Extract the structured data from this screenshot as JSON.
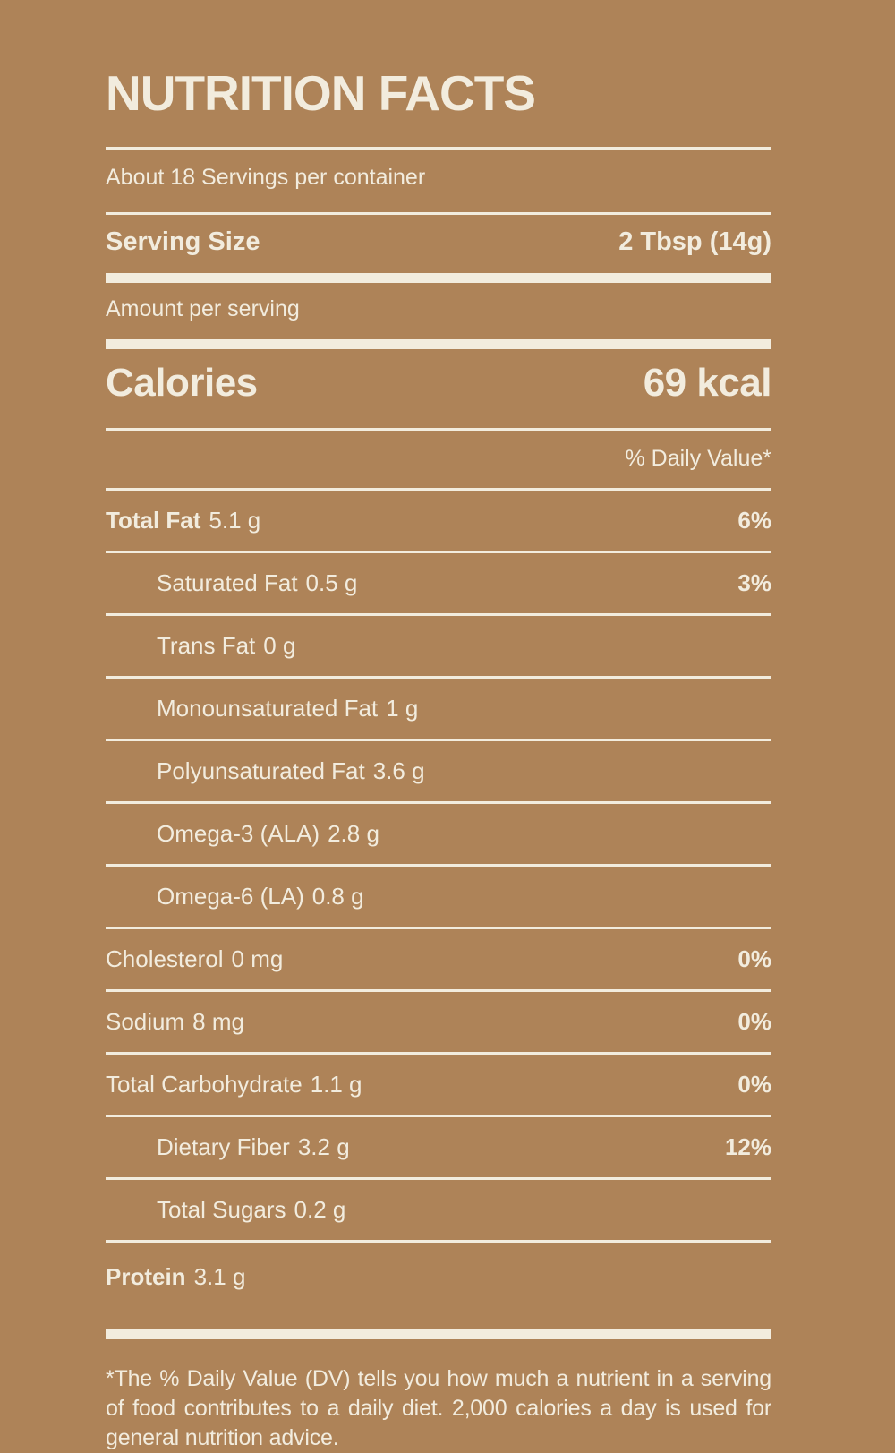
{
  "label": {
    "title": "NUTRITION FACTS",
    "servings_per_container": "About 18 Servings per container",
    "serving_size": {
      "label": "Serving Size",
      "value": "2 Tbsp (14g)"
    },
    "amount_per_serving": "Amount per serving",
    "calories": {
      "label": "Calories",
      "value": "69 kcal"
    },
    "daily_value_header": "% Daily Value*",
    "rows": [
      {
        "name": "Total Fat",
        "amount": "5.1 g",
        "dv": "6%",
        "bold": true,
        "indent": false
      },
      {
        "name": "Saturated Fat",
        "amount": "0.5 g",
        "dv": "3%",
        "bold": false,
        "indent": true
      },
      {
        "name": "Trans Fat",
        "amount": "0 g",
        "dv": "",
        "bold": false,
        "indent": true
      },
      {
        "name": "Monounsaturated Fat",
        "amount": "1 g",
        "dv": "",
        "bold": false,
        "indent": true
      },
      {
        "name": "Polyunsaturated Fat",
        "amount": "3.6 g",
        "dv": "",
        "bold": false,
        "indent": true
      },
      {
        "name": "Omega-3 (ALA)",
        "amount": "2.8 g",
        "dv": "",
        "bold": false,
        "indent": true
      },
      {
        "name": "Omega-6 (LA)",
        "amount": "0.8 g",
        "dv": "",
        "bold": false,
        "indent": true
      },
      {
        "name": "Cholesterol",
        "amount": "0 mg",
        "dv": "0%",
        "bold": false,
        "indent": false
      },
      {
        "name": "Sodium",
        "amount": "8 mg",
        "dv": "0%",
        "bold": false,
        "indent": false
      },
      {
        "name": "Total Carbohydrate",
        "amount": "1.1 g",
        "dv": "0%",
        "bold": false,
        "indent": false
      },
      {
        "name": "Dietary Fiber",
        "amount": "3.2 g",
        "dv": "12%",
        "bold": false,
        "indent": true
      },
      {
        "name": "Total Sugars",
        "amount": "0.2 g",
        "dv": "",
        "bold": false,
        "indent": true
      },
      {
        "name": "Protein",
        "amount": "3.1 g",
        "dv": "",
        "bold": true,
        "indent": false
      }
    ],
    "footnote": "*The % Daily Value (DV) tells you how much a nutrient in a serving of food contributes to a daily diet. 2,000 calories a day is used for general nutrition advice.",
    "colors": {
      "background": "#ae8358",
      "foreground": "#f2ecde"
    }
  }
}
